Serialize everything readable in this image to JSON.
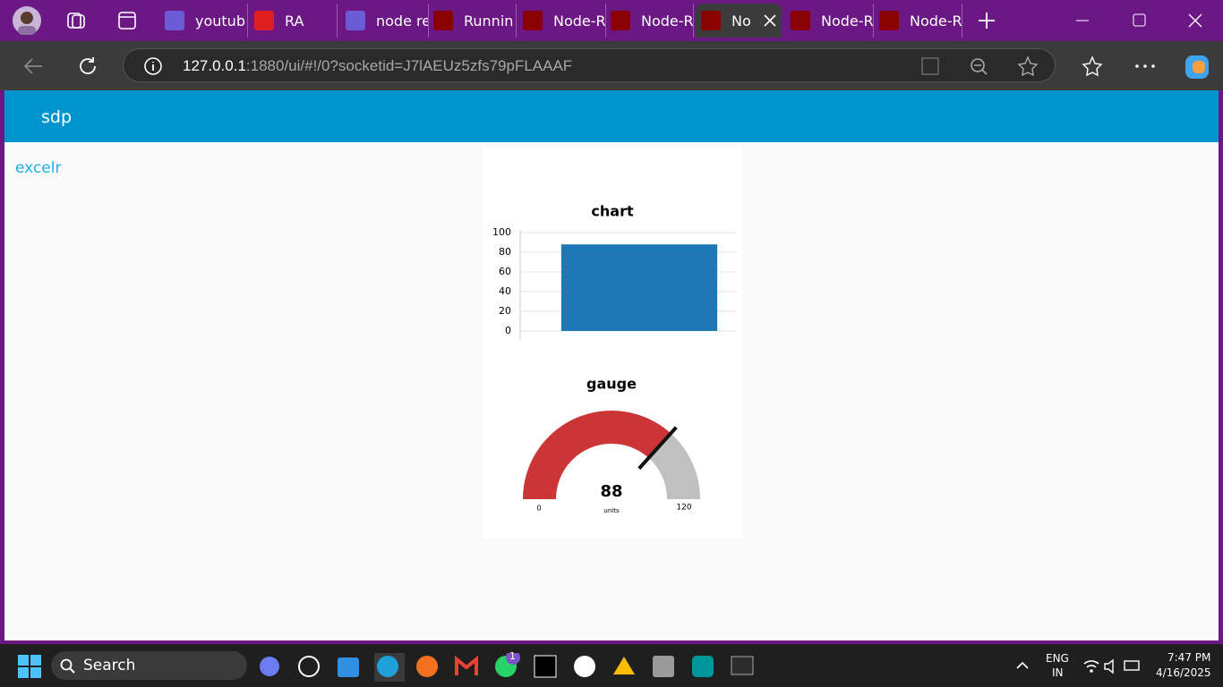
{
  "browser": {
    "tabs": [
      "youtub",
      "RA",
      "node re",
      "Runnin",
      "Node-R",
      "Node-R",
      "No",
      "Node-R",
      "Node-R"
    ],
    "url_host": "127.0.0.1",
    "url_path": ":1880/ui/#!/0?socketid=J7lAEUz5zfs79pFLAAAF"
  },
  "dashboard": {
    "header": "sdp",
    "group": "excelr",
    "chart": {
      "type": "bar",
      "title": "chart",
      "values": [
        88
      ],
      "color": "#1f77b4",
      "ylim": [
        0,
        100
      ],
      "yticks": [
        0,
        20,
        40,
        60,
        80,
        100
      ],
      "grid": true
    },
    "gauge": {
      "type": "gauge",
      "title": "gauge",
      "value": 88,
      "min": 0,
      "max": 120,
      "units": "units",
      "color": "#cb3535",
      "track_color": "#c0c0c0"
    }
  },
  "taskbar": {
    "search": "Search",
    "badge": "1",
    "language": "ENG",
    "region": "IN",
    "time": "7:47 PM",
    "date": "4/16/2025"
  }
}
